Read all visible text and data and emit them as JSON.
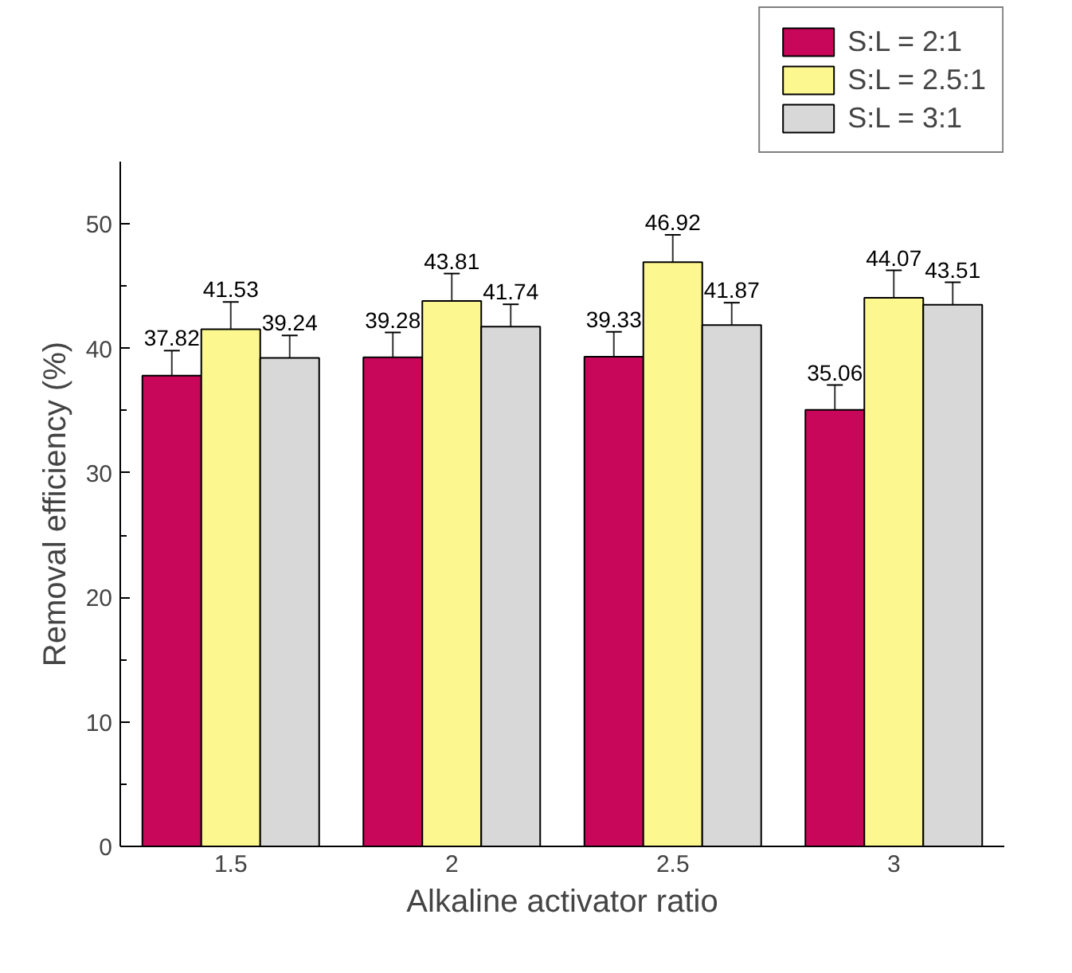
{
  "chart_data": {
    "type": "bar",
    "xlabel": "Alkaline activator ratio",
    "ylabel": "Removal efficiency (%)",
    "categories": [
      "1.5",
      "2",
      "2.5",
      "3"
    ],
    "series": [
      {
        "name": "S:L = 2:1",
        "color": "#c8075a",
        "values": [
          37.82,
          39.28,
          39.33,
          35.06
        ],
        "errors": [
          2,
          2,
          2,
          2
        ]
      },
      {
        "name": "S:L = 2.5:1",
        "color": "#fdf78f",
        "values": [
          41.53,
          43.81,
          46.92,
          44.07
        ],
        "errors": [
          2.2,
          2.2,
          2.2,
          2.2
        ]
      },
      {
        "name": "S:L = 3:1",
        "color": "#d8d8d8",
        "values": [
          39.24,
          41.74,
          41.87,
          43.51
        ],
        "errors": [
          1.8,
          1.8,
          1.8,
          1.8
        ]
      }
    ],
    "ylim": [
      0,
      55
    ],
    "yticks": [
      0,
      10,
      20,
      30,
      40,
      50
    ],
    "data_labels": true,
    "legend": "top right",
    "grid": false
  }
}
